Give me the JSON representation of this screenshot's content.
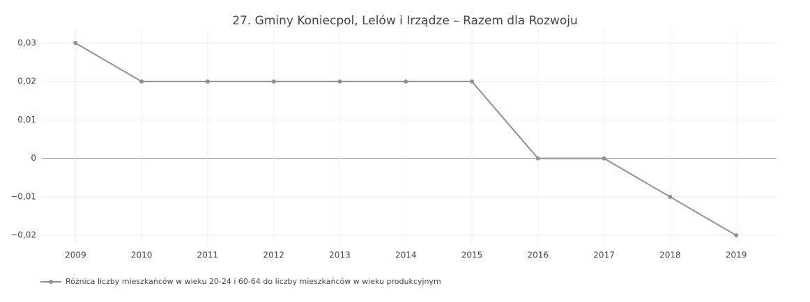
{
  "chart_data": {
    "type": "line",
    "title": "27. Gminy Koniecpol, Lelów  i Irządze – Razem dla Rozwoju",
    "x": [
      2009,
      2010,
      2011,
      2012,
      2013,
      2014,
      2015,
      2016,
      2017,
      2018,
      2019
    ],
    "series": [
      {
        "name": "Różnica liczby mieszkańców w wieku 20-24 i 60-64 do liczby mieszkańców w wieku produkcyjnym",
        "color": "#889491",
        "values": [
          0.03,
          0.02,
          0.02,
          0.02,
          0.02,
          0.02,
          0.02,
          0,
          0,
          -0.01,
          -0.02
        ]
      }
    ],
    "xlim": [
      2008.49,
      2019.6
    ],
    "xticks": [
      2009,
      2010,
      2011,
      2012,
      2013,
      2014,
      2015,
      2016,
      2017,
      2018,
      2019
    ],
    "ylim": [
      -0.0225,
      0.0336
    ],
    "yticks": [
      {
        "value": -0.02,
        "label": "−0,02"
      },
      {
        "value": -0.01,
        "label": "−0,01"
      },
      0,
      {
        "value": 0.01,
        "label": "0,01"
      },
      {
        "value": 0.02,
        "label": "0,02"
      },
      {
        "value": 0.03,
        "label": "0,03"
      }
    ],
    "grid": true,
    "legend": "bottom-left"
  }
}
